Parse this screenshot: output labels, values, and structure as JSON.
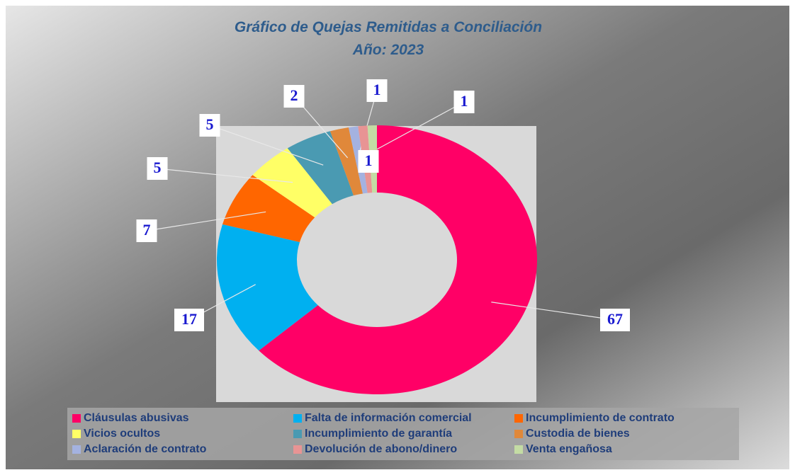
{
  "chart_data": {
    "type": "donut",
    "title": "Gráfico de Quejas Remitidas a Conciliación",
    "subtitle": "Año: 2023",
    "categories": [
      "Cláusulas abusivas",
      "Falta de información comercial",
      "Incumplimiento de contrato",
      "Vicios ocultos",
      "Incumplimiento de garantía",
      "Custodia de bienes",
      "Aclaración de contrato",
      "Devolución de abono/dinero",
      "Venta engañosa"
    ],
    "values": [
      67,
      17,
      7,
      5,
      5,
      2,
      1,
      1,
      1
    ],
    "colors": [
      "#ff0066",
      "#00b0f0",
      "#ff6600",
      "#ffff66",
      "#4a9ab2",
      "#e0883a",
      "#a4b2e0",
      "#e89494",
      "#c4dca4"
    ]
  }
}
